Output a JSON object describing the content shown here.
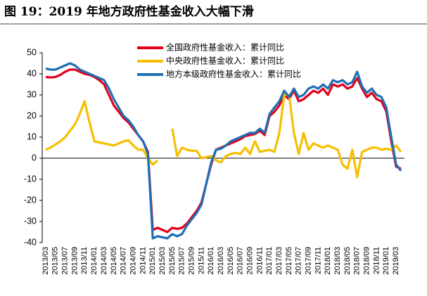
{
  "chart_data": {
    "type": "line",
    "title": "图 19：2019 年地方政府性基金收入大幅下滑",
    "categories": [
      "2013/03",
      null,
      "2013/05",
      null,
      "2013/07",
      null,
      "2013/09",
      null,
      "2013/11",
      null,
      "2014/01",
      null,
      "2014/03",
      null,
      "2014/05",
      null,
      "2014/07",
      null,
      "2014/09",
      null,
      "2014/11",
      null,
      "2015/01",
      null,
      "2015/03",
      null,
      "2015/05",
      null,
      "2015/07",
      null,
      "2015/09",
      null,
      "2015/11",
      null,
      "2016/01",
      null,
      "2016/03",
      null,
      "2016/05",
      null,
      "2016/07",
      null,
      "2016/09",
      null,
      "2016/11",
      null,
      "2017/01",
      null,
      "2017/03",
      null,
      "2017/05",
      null,
      "2017/07",
      null,
      "2017/09",
      null,
      "2017/11",
      null,
      "2018/01",
      null,
      "2018/03",
      null,
      "2018/05",
      null,
      "2018/07",
      null,
      "2018/09",
      null,
      "2018/11",
      null,
      "2019/01",
      null,
      "2019/03",
      null
    ],
    "series": [
      {
        "name": "全国政府性基金收入：累计同比",
        "color": "#e3001b",
        "values": [
          38.5,
          38.3,
          38.5,
          39.5,
          41,
          42,
          42,
          41,
          40,
          39.5,
          38.5,
          37,
          35,
          30,
          25,
          22,
          19,
          17,
          14,
          11,
          8,
          3,
          -34,
          -33,
          -34,
          -35,
          -33,
          -33.5,
          -33,
          -31,
          -28,
          -25,
          -21,
          -12,
          -3,
          4,
          5,
          6,
          7,
          8,
          9,
          10.5,
          11,
          11.5,
          13,
          11,
          20,
          22,
          25,
          30,
          28,
          32,
          27,
          28,
          30,
          32,
          31,
          33,
          30,
          35,
          34,
          35,
          33,
          34,
          38,
          33,
          29,
          31,
          28,
          27,
          22,
          8,
          -4,
          -5
        ]
      },
      {
        "name": "中央政府性基金收入：累计同比",
        "color": "#f5c000",
        "values": [
          4,
          5,
          6.5,
          8,
          10,
          13,
          16,
          21,
          27,
          17,
          8,
          7.5,
          7,
          6.5,
          6,
          7,
          8,
          8.5,
          6,
          4,
          4,
          0,
          -3,
          -1,
          null,
          null,
          14,
          1,
          5,
          4,
          3.5,
          3.5,
          0,
          0.5,
          1,
          -1,
          -2,
          1,
          2,
          2.5,
          2,
          5,
          2,
          8,
          3,
          3.5,
          4,
          3,
          12,
          30,
          30,
          12,
          2,
          12,
          4,
          7,
          6,
          5,
          6,
          5,
          4,
          -3,
          -5,
          4,
          -9,
          3,
          4,
          5,
          5,
          4,
          4.5,
          4,
          6,
          3
        ]
      },
      {
        "name": "地方本级政府性基金收入：累计同比",
        "color": "#1f6fb4",
        "values": [
          42.5,
          42,
          42,
          43,
          44,
          45,
          44,
          42,
          41,
          40,
          39,
          38,
          37,
          33,
          28,
          24,
          20,
          18,
          15,
          11,
          8,
          2,
          -38,
          -37,
          -37.5,
          -38,
          -36,
          -37,
          -36,
          -32,
          -29,
          -26,
          -22,
          -12,
          -2,
          4,
          4.5,
          6,
          8,
          9,
          10,
          11,
          12,
          12,
          14,
          12,
          21,
          24,
          27,
          32,
          29,
          33,
          29,
          30,
          33,
          34,
          33,
          35,
          33,
          37,
          36,
          37,
          35,
          36,
          41,
          34,
          31,
          33,
          30,
          29,
          24,
          10,
          -3,
          -6
        ]
      }
    ],
    "ylim": [
      -40,
      50
    ],
    "yticks": [
      -40,
      -30,
      -20,
      -10,
      0,
      10,
      20,
      30,
      40,
      50
    ]
  }
}
